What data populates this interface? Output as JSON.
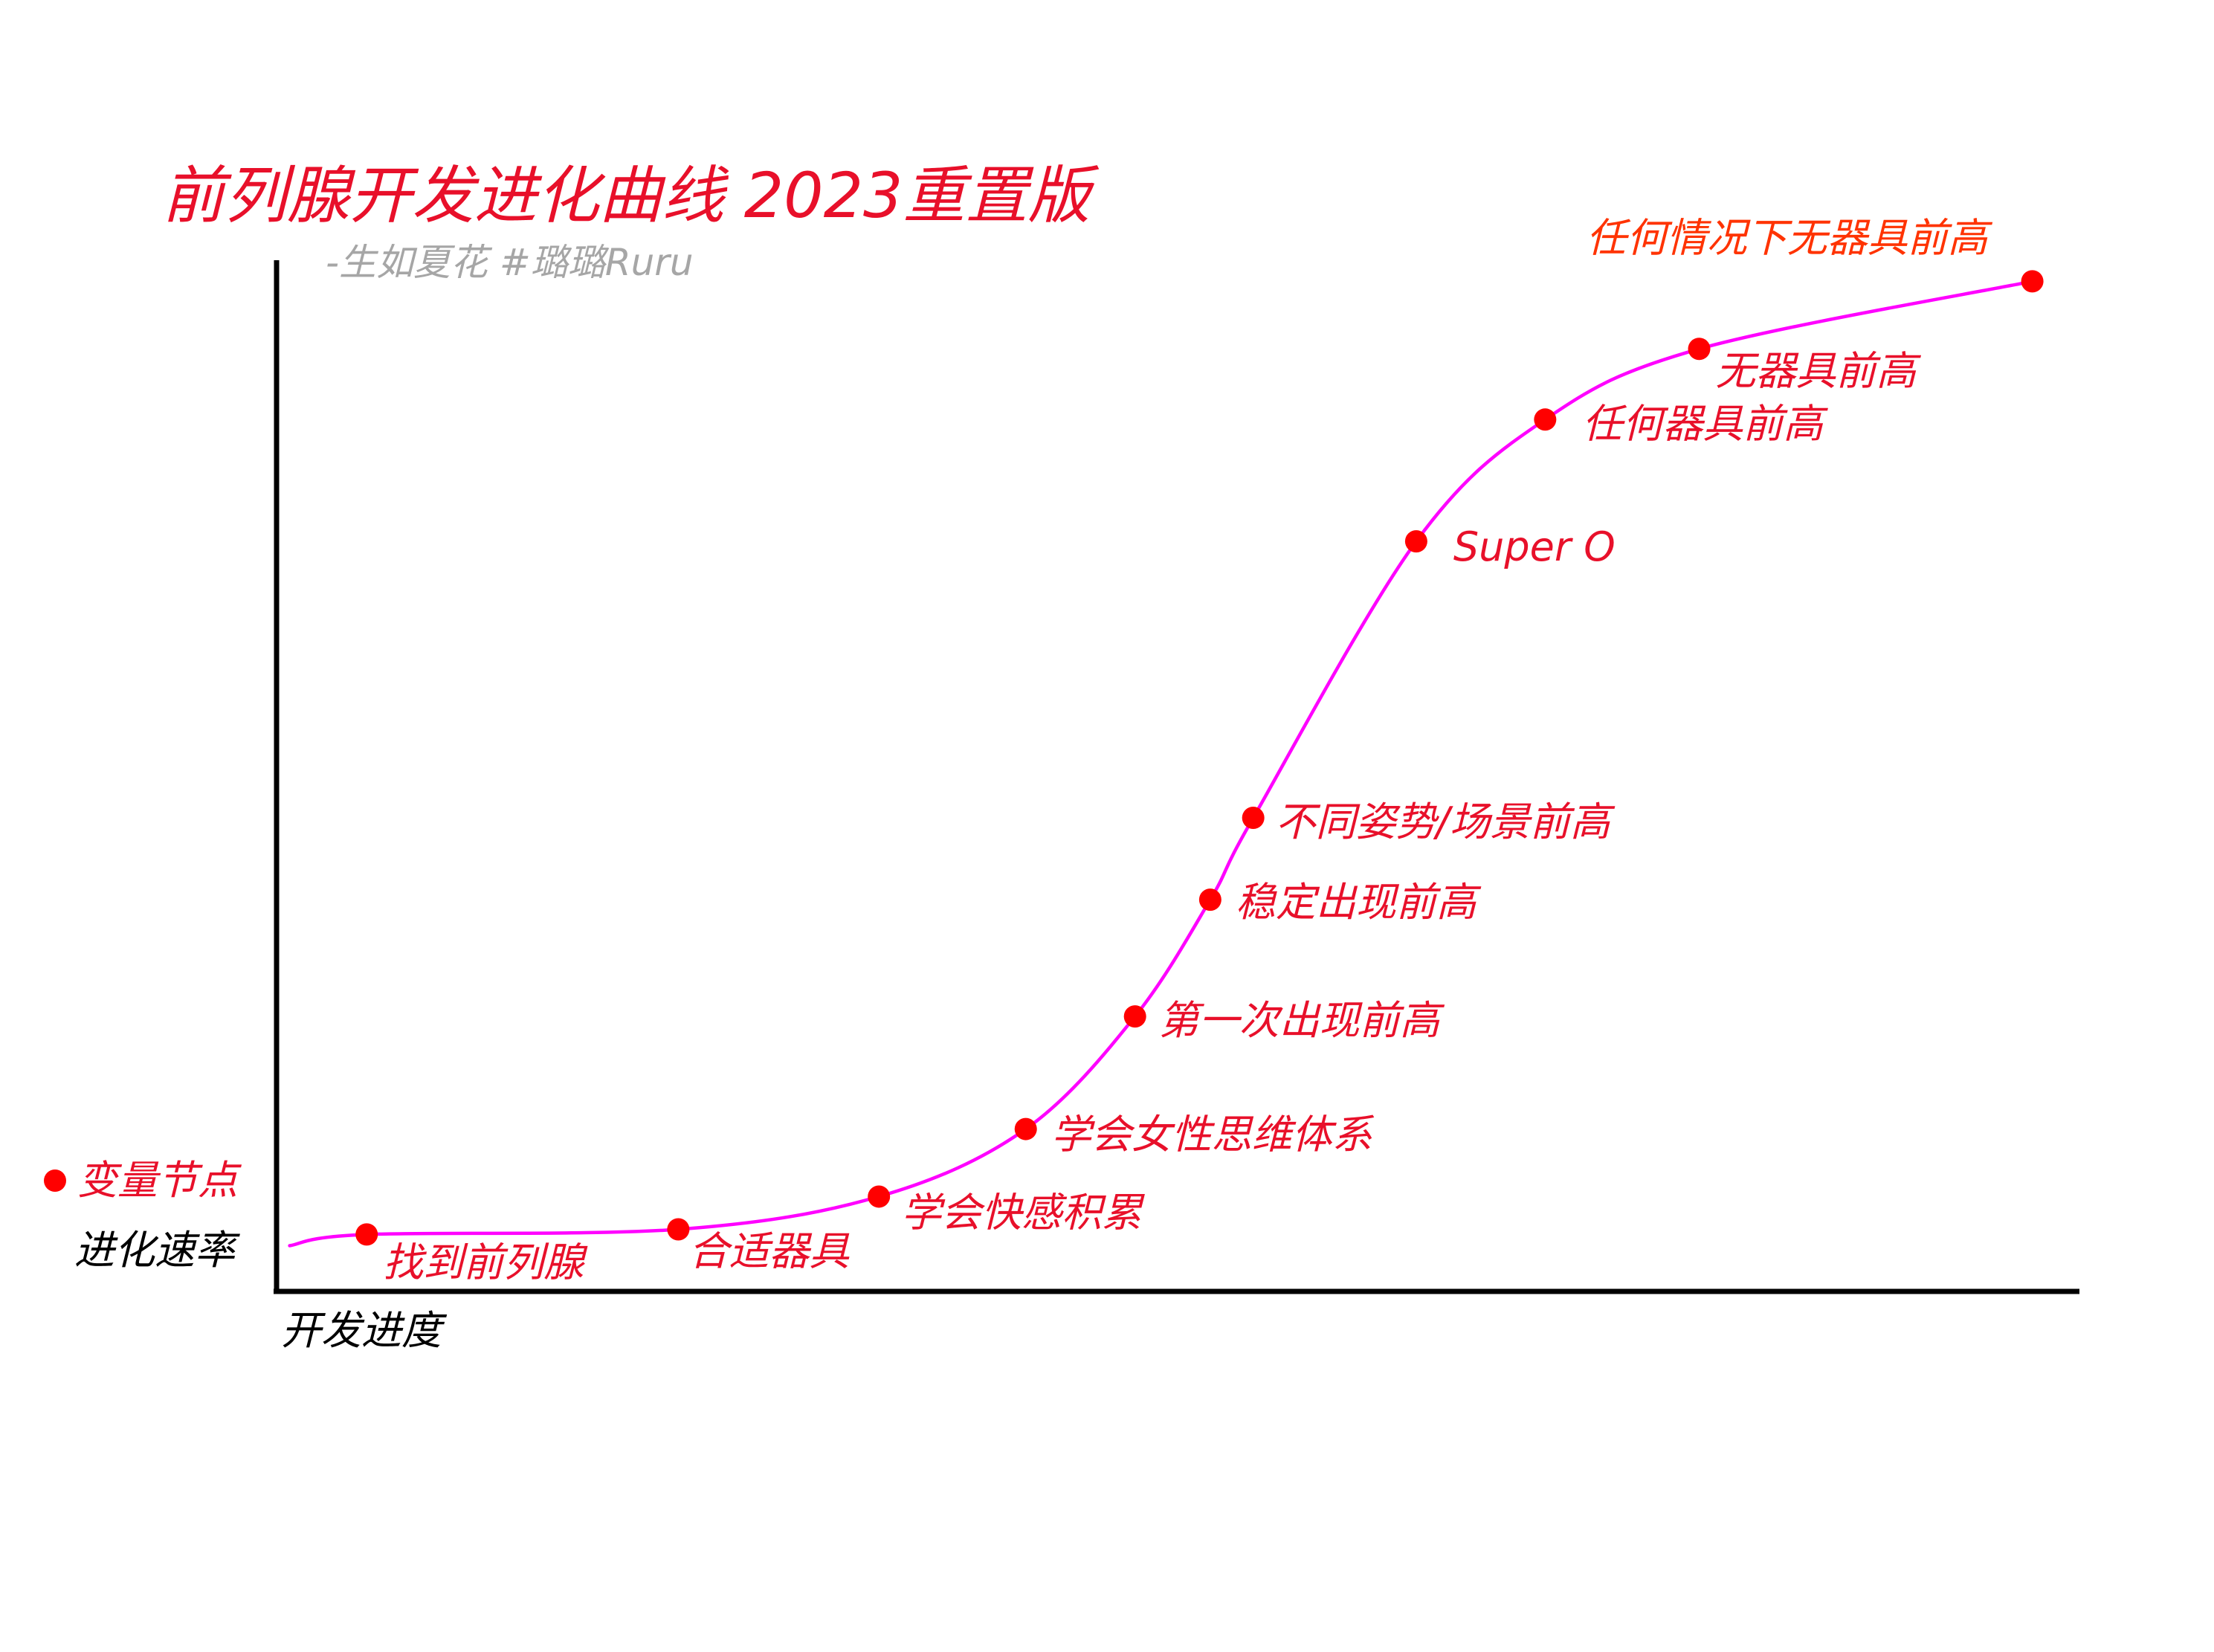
{
  "colors": {
    "title": "#e8102a",
    "subtitle": "#a6a6a6",
    "curve": "#ff00ff",
    "point": "#ff0000",
    "label": "#e8102a",
    "last_label": "#ff3300",
    "axis": "#000000",
    "axis_label": "#000000"
  },
  "chart_data": {
    "type": "line",
    "title": "前列腺开发进化曲线  2023重置版",
    "subtitle": "-生如夏花 #璐璐Ruru",
    "xlabel": "开发进度",
    "ylabel": "进化速率",
    "legend": {
      "label": "变量节点",
      "placement": "left"
    },
    "grid": false,
    "xlim": [
      0,
      100
    ],
    "ylim": [
      0,
      100
    ],
    "series": [
      {
        "points": [
          {
            "x": 4.7,
            "y": 5.2,
            "label": "找到前列腺"
          },
          {
            "x": 22.1,
            "y": 5.7,
            "label": "合适器具"
          },
          {
            "x": 33.3,
            "y": 8.9,
            "label": "学会快感积累"
          },
          {
            "x": 41.5,
            "y": 15.5,
            "label": "学会女性思维体系"
          },
          {
            "x": 47.6,
            "y": 26.5,
            "label": "第一次出现前高"
          },
          {
            "x": 51.8,
            "y": 37.9,
            "label": "稳定出现前高"
          },
          {
            "x": 54.2,
            "y": 45.9,
            "label": "不同姿势/场景前高"
          },
          {
            "x": 63.3,
            "y": 72.9,
            "label": "Super O"
          },
          {
            "x": 70.5,
            "y": 84.8,
            "label": "任何器具前高"
          },
          {
            "x": 79.1,
            "y": 91.7,
            "label": "无器具前高"
          },
          {
            "x": 97.7,
            "y": 98.3,
            "label": "任何情况下无器具前高"
          }
        ]
      }
    ]
  }
}
